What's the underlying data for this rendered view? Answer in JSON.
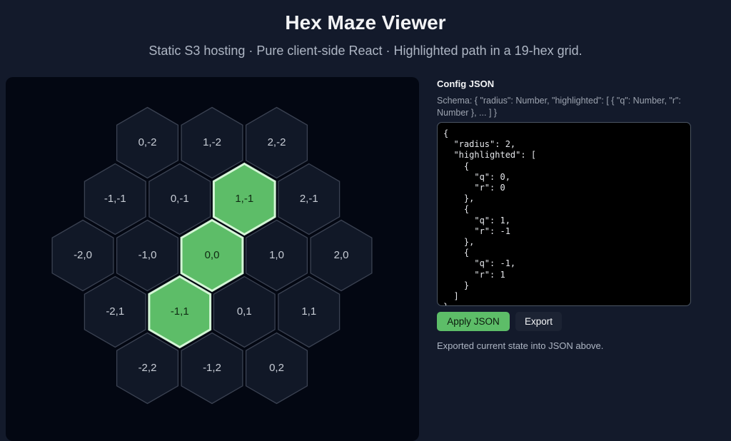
{
  "header": {
    "title": "Hex Maze Viewer",
    "subtitle": "Static S3 hosting · Pure client-side React · Highlighted path in a 19-hex grid."
  },
  "grid": {
    "cells": [
      {
        "label": "0,-2",
        "highlighted": false
      },
      {
        "label": "1,-2",
        "highlighted": false
      },
      {
        "label": "2,-2",
        "highlighted": false
      },
      {
        "label": "-1,-1",
        "highlighted": false
      },
      {
        "label": "0,-1",
        "highlighted": false
      },
      {
        "label": "1,-1",
        "highlighted": true
      },
      {
        "label": "2,-1",
        "highlighted": false
      },
      {
        "label": "-2,0",
        "highlighted": false
      },
      {
        "label": "-1,0",
        "highlighted": false
      },
      {
        "label": "0,0",
        "highlighted": true
      },
      {
        "label": "1,0",
        "highlighted": false
      },
      {
        "label": "2,0",
        "highlighted": false
      },
      {
        "label": "-2,1",
        "highlighted": false
      },
      {
        "label": "-1,1",
        "highlighted": true
      },
      {
        "label": "0,1",
        "highlighted": false
      },
      {
        "label": "1,1",
        "highlighted": false
      },
      {
        "label": "-2,2",
        "highlighted": false
      },
      {
        "label": "-1,2",
        "highlighted": false
      },
      {
        "label": "0,2",
        "highlighted": false
      }
    ]
  },
  "config": {
    "heading": "Config JSON",
    "schema": "Schema: { \"radius\": Number, \"highlighted\": [ { \"q\": Number, \"r\": Number }, ... ] }",
    "editor_text": "{\n  \"radius\": 2,\n  \"highlighted\": [\n    {\n      \"q\": 0,\n      \"r\": 0\n    },\n    {\n      \"q\": 1,\n      \"r\": -1\n    },\n    {\n      \"q\": -1,\n      \"r\": 1\n    }\n  ]\n}",
    "apply_button": "Apply JSON",
    "export_button": "Export",
    "status": "Exported current state into JSON above."
  }
}
